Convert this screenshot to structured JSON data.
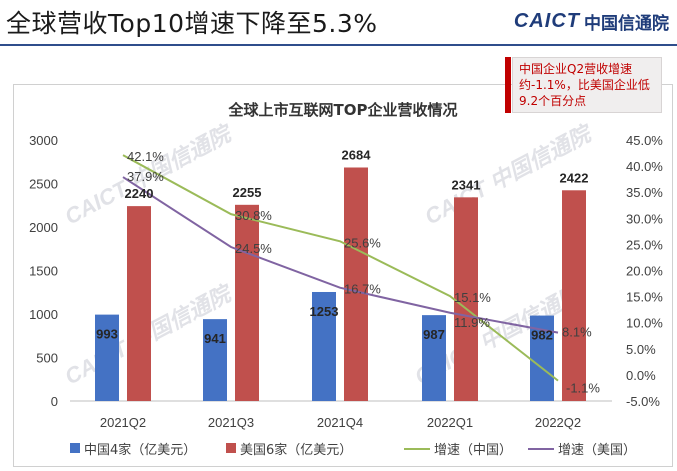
{
  "header": {
    "title": "全球营收Top10增速下降至5.3%",
    "logo_latin": "CAICT",
    "logo_cn": "中国信通院"
  },
  "callout": {
    "text": "中国企业Q2营收增速约-1.1%，比美国企业低9.2个百分点"
  },
  "watermark": {
    "latin": "CAICT",
    "cn": "中国信通院"
  },
  "colors": {
    "china_bar": "#4472c4",
    "us_bar": "#c0504d",
    "china_line": "#9bbb59",
    "us_line": "#8064a2",
    "title_rule": "#2f4e8c",
    "accent_red": "#c00000"
  },
  "chart_data": {
    "type": "bar",
    "title": "全球上市互联网TOP企业营收情况",
    "categories": [
      "2021Q2",
      "2021Q3",
      "2021Q4",
      "2022Q1",
      "2022Q2"
    ],
    "left_axis": {
      "min": 0,
      "max": 3000,
      "ticks": [
        "0",
        "500",
        "1000",
        "1500",
        "2000",
        "2500",
        "3000"
      ],
      "tick_values": [
        0,
        500,
        1000,
        1500,
        2000,
        2500,
        3000
      ]
    },
    "right_axis": {
      "min": -5,
      "max": 45,
      "tick_values": [
        -5,
        0,
        5,
        10,
        15,
        20,
        25,
        30,
        35,
        40,
        45
      ],
      "ticks": [
        "-5.0%",
        "0.0%",
        "5.0%",
        "10.0%",
        "15.0%",
        "20.0%",
        "25.0%",
        "30.0%",
        "35.0%",
        "40.0%",
        "45.0%"
      ]
    },
    "series": [
      {
        "name": "中国4家（亿美元）",
        "kind": "bar",
        "axis": "left",
        "values": [
          993,
          941,
          1253,
          987,
          982
        ],
        "labels": [
          "993",
          "941",
          "1253",
          "987",
          "982"
        ]
      },
      {
        "name": "美国6家（亿美元）",
        "kind": "bar",
        "axis": "left",
        "values": [
          2240,
          2255,
          2684,
          2341,
          2422
        ],
        "labels": [
          "2240",
          "2255",
          "2684",
          "2341",
          "2422"
        ]
      },
      {
        "name": "增速（中国）",
        "kind": "line",
        "axis": "right",
        "values": [
          42.1,
          30.8,
          25.6,
          15.1,
          -1.1
        ],
        "labels": [
          "42.1%",
          "30.8%",
          "25.6%",
          "15.1%",
          "-1.1%"
        ]
      },
      {
        "name": "增速（美国）",
        "kind": "line",
        "axis": "right",
        "values": [
          37.9,
          24.5,
          16.7,
          11.9,
          8.1
        ],
        "labels": [
          "37.9%",
          "24.5%",
          "16.7%",
          "11.9%",
          "8.1%"
        ]
      }
    ],
    "legend_position": "bottom",
    "grid": false
  }
}
